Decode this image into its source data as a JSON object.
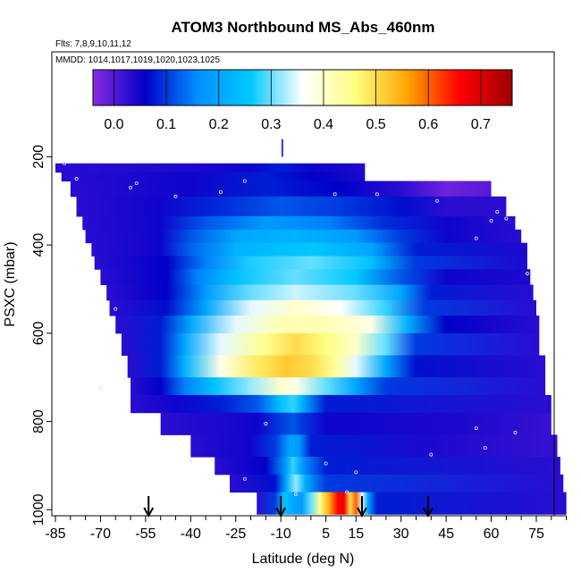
{
  "chart_data": {
    "type": "heatmap",
    "title": "ATOM3 Northbound MS_Abs_460nm",
    "subtitle_flights": "Flts: 7,8,9,10,11,12",
    "subtitle_dates": "MMDD: 1014,1017,1019,1020,1023,1025",
    "xlabel": "Latitude (deg N)",
    "ylabel": "PSXC (mbar)",
    "xlim": [
      -85,
      85
    ],
    "ylim": [
      1000,
      0
    ],
    "x_ticks": [
      -85,
      -70,
      -55,
      -40,
      -25,
      -10,
      5,
      15,
      30,
      45,
      60,
      75
    ],
    "x_tick_labels": [
      "-85",
      "-70",
      "-55",
      "-40",
      "-25",
      "-10",
      "5",
      "15",
      "30",
      "45",
      "60",
      "75"
    ],
    "y_ticks": [
      200,
      400,
      600,
      800,
      1000
    ],
    "y_tick_labels": [
      "200",
      "400",
      "600",
      "800",
      "1000"
    ],
    "colorbar": {
      "range": [
        -0.04,
        0.76
      ],
      "tick_values": [
        0.0,
        0.1,
        0.2,
        0.3,
        0.4,
        0.5,
        0.6,
        0.7
      ],
      "tick_labels": [
        "0.0",
        "0.1",
        "0.2",
        "0.3",
        "0.4",
        "0.5",
        "0.6",
        "0.7"
      ],
      "colors": [
        "#8a2be2",
        "#0000c8",
        "#0090ff",
        "#00c8ff",
        "#ffffff",
        "#ffff80",
        "#ffa500",
        "#ff0000",
        "#a00000"
      ]
    },
    "arrow_latitudes": [
      -54,
      -10,
      17,
      39
    ],
    "layers": [
      {
        "p": [
          215,
          235
        ],
        "lat": [
          -85,
          18
        ],
        "v": [
          [
            -85,
            0.03
          ],
          [
            -40,
            0.04
          ],
          [
            -20,
            0.05
          ],
          [
            -10,
            0.08
          ],
          [
            0,
            0.05
          ],
          [
            18,
            0.04
          ]
        ]
      },
      {
        "p": [
          235,
          255
        ],
        "lat": [
          -83,
          18
        ],
        "v": [
          [
            -83,
            0.03
          ],
          [
            -40,
            0.05
          ],
          [
            -15,
            0.08
          ],
          [
            0,
            0.06
          ],
          [
            18,
            0.04
          ]
        ]
      },
      {
        "p": [
          255,
          290
        ],
        "lat": [
          -80,
          60
        ],
        "v": [
          [
            -80,
            0.03
          ],
          [
            -40,
            0.05
          ],
          [
            -15,
            0.08
          ],
          [
            10,
            0.06
          ],
          [
            30,
            0.03
          ],
          [
            45,
            -0.02
          ],
          [
            60,
            0.0
          ]
        ]
      },
      {
        "p": [
          290,
          335
        ],
        "lat": [
          -78,
          65
        ],
        "v": [
          [
            -78,
            0.03
          ],
          [
            -50,
            0.05
          ],
          [
            -30,
            0.09
          ],
          [
            -10,
            0.12
          ],
          [
            10,
            0.1
          ],
          [
            30,
            0.07
          ],
          [
            45,
            0.03
          ],
          [
            65,
            0.03
          ]
        ]
      },
      {
        "p": [
          335,
          365
        ],
        "lat": [
          -76,
          68
        ],
        "v": [
          [
            -76,
            0.03
          ],
          [
            -50,
            0.05
          ],
          [
            -35,
            0.12
          ],
          [
            -15,
            0.18
          ],
          [
            5,
            0.15
          ],
          [
            25,
            0.09
          ],
          [
            45,
            0.05
          ],
          [
            68,
            0.03
          ]
        ]
      },
      {
        "p": [
          365,
          395
        ],
        "lat": [
          -75,
          70
        ],
        "v": [
          [
            -75,
            0.03
          ],
          [
            -50,
            0.05
          ],
          [
            -40,
            0.12
          ],
          [
            -25,
            0.2
          ],
          [
            -5,
            0.22
          ],
          [
            15,
            0.18
          ],
          [
            30,
            0.1
          ],
          [
            45,
            0.05
          ],
          [
            70,
            0.03
          ]
        ]
      },
      {
        "p": [
          395,
          425
        ],
        "lat": [
          -73,
          72
        ],
        "v": [
          [
            -73,
            0.03
          ],
          [
            -50,
            0.05
          ],
          [
            -40,
            0.13
          ],
          [
            -25,
            0.22
          ],
          [
            0,
            0.26
          ],
          [
            20,
            0.2
          ],
          [
            35,
            0.08
          ],
          [
            72,
            0.04
          ]
        ]
      },
      {
        "p": [
          425,
          455
        ],
        "lat": [
          -72,
          72
        ],
        "v": [
          [
            -72,
            0.03
          ],
          [
            -48,
            0.06
          ],
          [
            -35,
            0.15
          ],
          [
            -20,
            0.27
          ],
          [
            0,
            0.3
          ],
          [
            20,
            0.25
          ],
          [
            35,
            0.1
          ],
          [
            72,
            0.04
          ]
        ]
      },
      {
        "p": [
          455,
          490
        ],
        "lat": [
          -70,
          73
        ],
        "v": [
          [
            -70,
            0.03
          ],
          [
            -48,
            0.06
          ],
          [
            -38,
            0.15
          ],
          [
            -25,
            0.25
          ],
          [
            -5,
            0.3
          ],
          [
            15,
            0.26
          ],
          [
            30,
            0.12
          ],
          [
            45,
            0.05
          ],
          [
            73,
            0.04
          ]
        ]
      },
      {
        "p": [
          490,
          525
        ],
        "lat": [
          -68,
          74
        ],
        "v": [
          [
            -68,
            0.03
          ],
          [
            -48,
            0.06
          ],
          [
            -35,
            0.18
          ],
          [
            -20,
            0.3
          ],
          [
            -5,
            0.34
          ],
          [
            15,
            0.3
          ],
          [
            30,
            0.2
          ],
          [
            40,
            0.08
          ],
          [
            74,
            0.03
          ]
        ]
      },
      {
        "p": [
          525,
          560
        ],
        "lat": [
          -67,
          75
        ],
        "v": [
          [
            -67,
            0.03
          ],
          [
            -48,
            0.07
          ],
          [
            -35,
            0.2
          ],
          [
            -20,
            0.35
          ],
          [
            -5,
            0.4
          ],
          [
            10,
            0.36
          ],
          [
            25,
            0.28
          ],
          [
            38,
            0.1
          ],
          [
            75,
            0.03
          ]
        ]
      },
      {
        "p": [
          560,
          600
        ],
        "lat": [
          -65,
          76
        ],
        "v": [
          [
            -65,
            0.03
          ],
          [
            -50,
            0.08
          ],
          [
            -40,
            0.2
          ],
          [
            -25,
            0.35
          ],
          [
            -10,
            0.42
          ],
          [
            5,
            0.42
          ],
          [
            20,
            0.38
          ],
          [
            32,
            0.22
          ],
          [
            45,
            0.06
          ],
          [
            76,
            0.03
          ]
        ]
      },
      {
        "p": [
          600,
          650
        ],
        "lat": [
          -63,
          76
        ],
        "v": [
          [
            -63,
            0.03
          ],
          [
            -50,
            0.08
          ],
          [
            -42,
            0.2
          ],
          [
            -30,
            0.35
          ],
          [
            -15,
            0.45
          ],
          [
            -5,
            0.5
          ],
          [
            5,
            0.46
          ],
          [
            15,
            0.4
          ],
          [
            25,
            0.3
          ],
          [
            35,
            0.1
          ],
          [
            76,
            0.03
          ]
        ]
      },
      {
        "p": [
          650,
          700
        ],
        "lat": [
          -61,
          78
        ],
        "v": [
          [
            -61,
            0.03
          ],
          [
            -50,
            0.08
          ],
          [
            -42,
            0.22
          ],
          [
            -30,
            0.38
          ],
          [
            -18,
            0.48
          ],
          [
            -8,
            0.52
          ],
          [
            0,
            0.5
          ],
          [
            8,
            0.44
          ],
          [
            15,
            0.35
          ],
          [
            25,
            0.2
          ],
          [
            35,
            0.07
          ],
          [
            78,
            0.03
          ]
        ]
      },
      {
        "p": [
          700,
          740
        ],
        "lat": [
          -60,
          78
        ],
        "v": [
          [
            -60,
            0.03
          ],
          [
            -50,
            0.06
          ],
          [
            -42,
            0.15
          ],
          [
            -32,
            0.25
          ],
          [
            -20,
            0.32
          ],
          [
            -10,
            0.4
          ],
          [
            -5,
            0.38
          ],
          [
            5,
            0.3
          ],
          [
            15,
            0.2
          ],
          [
            25,
            0.1
          ],
          [
            78,
            0.03
          ]
        ]
      },
      {
        "p": [
          740,
          780
        ],
        "lat": [
          -60,
          80
        ],
        "v": [
          [
            -60,
            0.03
          ],
          [
            -45,
            0.05
          ],
          [
            -30,
            0.08
          ],
          [
            -18,
            0.12
          ],
          [
            -10,
            0.25
          ],
          [
            -6,
            0.28
          ],
          [
            -3,
            0.22
          ],
          [
            5,
            0.08
          ],
          [
            80,
            0.03
          ]
        ]
      },
      {
        "p": [
          780,
          830
        ],
        "lat": [
          -50,
          80
        ],
        "v": [
          [
            -50,
            0.03
          ],
          [
            -30,
            0.04
          ],
          [
            -18,
            0.05
          ],
          [
            -10,
            0.1
          ],
          [
            -6,
            0.12
          ],
          [
            -3,
            0.1
          ],
          [
            5,
            0.05
          ],
          [
            50,
            0.04
          ],
          [
            80,
            0.02
          ]
        ]
      },
      {
        "p": [
          830,
          880
        ],
        "lat": [
          -40,
          82
        ],
        "v": [
          [
            -40,
            0.03
          ],
          [
            -20,
            0.05
          ],
          [
            -12,
            0.1
          ],
          [
            -7,
            0.2
          ],
          [
            -4,
            0.18
          ],
          [
            0,
            0.08
          ],
          [
            40,
            0.04
          ],
          [
            82,
            0.02
          ]
        ]
      },
      {
        "p": [
          880,
          920
        ],
        "lat": [
          -32,
          83
        ],
        "v": [
          [
            -32,
            0.03
          ],
          [
            -15,
            0.06
          ],
          [
            -8,
            0.2
          ],
          [
            -6,
            0.28
          ],
          [
            -3,
            0.18
          ],
          [
            5,
            0.08
          ],
          [
            83,
            0.03
          ]
        ]
      },
      {
        "p": [
          920,
          960
        ],
        "lat": [
          -27,
          84
        ],
        "v": [
          [
            -27,
            0.03
          ],
          [
            -12,
            0.07
          ],
          [
            -8,
            0.22
          ],
          [
            -5,
            0.32
          ],
          [
            -2,
            0.22
          ],
          [
            5,
            0.1
          ],
          [
            84,
            0.03
          ]
        ]
      },
      {
        "p": [
          960,
          1010
        ],
        "lat": [
          -18,
          85
        ],
        "v": [
          [
            -18,
            0.03
          ],
          [
            -12,
            0.1
          ],
          [
            -9,
            0.25
          ],
          [
            -6,
            0.2
          ],
          [
            -3,
            0.18
          ],
          [
            0,
            0.3
          ],
          [
            3,
            0.45
          ],
          [
            6,
            0.55
          ],
          [
            9,
            0.66
          ],
          [
            11,
            0.68
          ],
          [
            13,
            0.5
          ],
          [
            15,
            0.6
          ],
          [
            17,
            0.35
          ],
          [
            19,
            0.2
          ],
          [
            22,
            0.08
          ],
          [
            85,
            0.03
          ]
        ]
      }
    ],
    "marker_points": [
      [
        -82,
        215
      ],
      [
        -78,
        250
      ],
      [
        -60,
        270
      ],
      [
        -58,
        260
      ],
      [
        -45,
        290
      ],
      [
        -30,
        280
      ],
      [
        -22,
        255
      ],
      [
        8,
        285
      ],
      [
        22,
        285
      ],
      [
        42,
        300
      ],
      [
        60,
        345
      ],
      [
        65,
        340
      ],
      [
        62,
        325
      ],
      [
        55,
        385
      ],
      [
        72,
        465
      ],
      [
        -65,
        545
      ],
      [
        -70,
        725
      ],
      [
        -15,
        805
      ],
      [
        55,
        815
      ],
      [
        68,
        825
      ],
      [
        -40,
        890
      ],
      [
        5,
        895
      ],
      [
        -22,
        930
      ],
      [
        15,
        915
      ],
      [
        40,
        875
      ],
      [
        58,
        860
      ],
      [
        -5,
        965
      ],
      [
        12,
        960
      ]
    ]
  }
}
